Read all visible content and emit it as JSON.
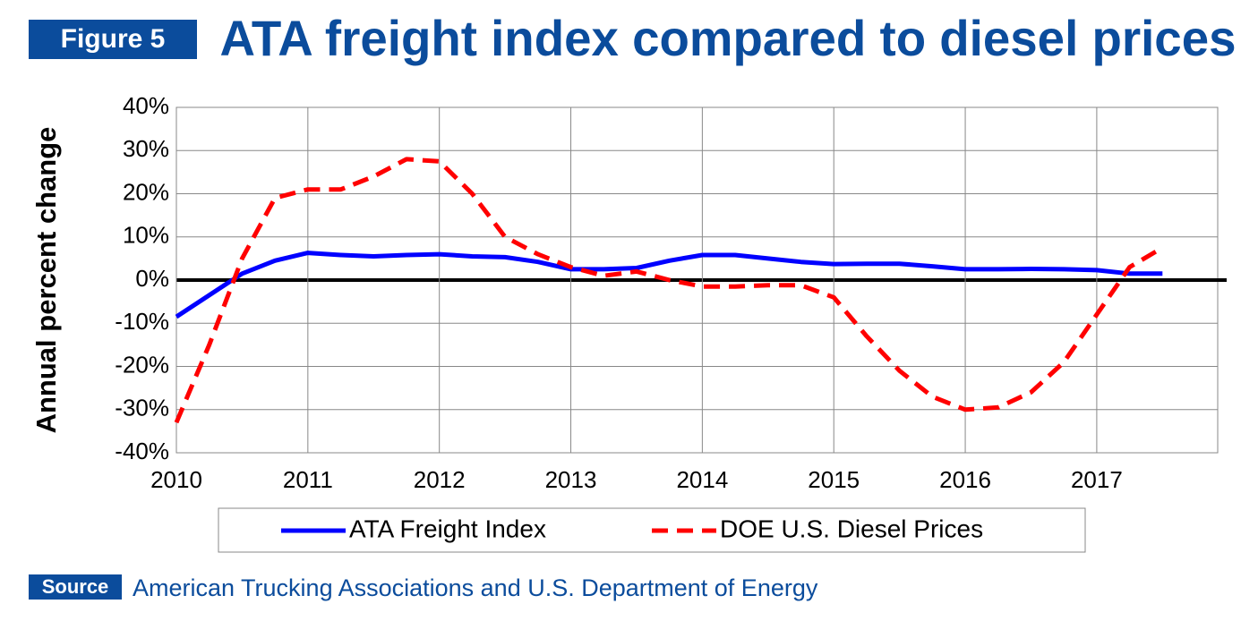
{
  "chart_data": {
    "type": "line",
    "badge": "Figure 5",
    "title": "ATA freight index compared to diesel prices",
    "y_label": "Annual percent  change",
    "source_label": "Source",
    "source": "American Trucking Associations and U.S. Department of Energy",
    "x": [
      2010,
      2010.25,
      2010.5,
      2010.75,
      2011,
      2011.25,
      2011.5,
      2011.75,
      2012,
      2012.25,
      2012.5,
      2012.75,
      2013,
      2013.25,
      2013.5,
      2013.75,
      2014,
      2014.25,
      2014.5,
      2014.75,
      2015,
      2015.25,
      2015.5,
      2015.75,
      2016,
      2016.25,
      2016.5,
      2016.75,
      2017,
      2017.25,
      2017.5
    ],
    "series": [
      {
        "name": "ATA Freight Index",
        "color": "#0000ff",
        "dash": false,
        "values": [
          -8.5,
          -3.5,
          1.5,
          4.5,
          6.3,
          5.8,
          5.5,
          5.8,
          6.0,
          5.5,
          5.3,
          4.2,
          2.5,
          2.5,
          2.8,
          4.5,
          5.8,
          5.8,
          5.0,
          4.2,
          3.7,
          3.8,
          3.8,
          3.2,
          2.5,
          2.5,
          2.6,
          2.5,
          2.3,
          1.5,
          1.5
        ]
      },
      {
        "name": "DOE U.S. Diesel Prices",
        "color": "#ff0000",
        "dash": true,
        "values": [
          -33,
          -15,
          5,
          19,
          21,
          21,
          24,
          28,
          27.5,
          20,
          10,
          6,
          3,
          1,
          2,
          0,
          -1.5,
          -1.5,
          -1.2,
          -1.2,
          -4,
          -13,
          -21,
          -27,
          -30,
          -29.5,
          -26,
          -19,
          -8,
          3,
          7.5
        ]
      }
    ],
    "xlim": [
      2010,
      2017.92
    ],
    "xticks": [
      2010,
      2011,
      2012,
      2013,
      2014,
      2015,
      2016,
      2017
    ],
    "ylim": [
      -40,
      40
    ],
    "yticks": [
      {
        "value": -40,
        "label": "-40%"
      },
      {
        "value": -30,
        "label": "-30%"
      },
      {
        "value": -20,
        "label": "-20%"
      },
      {
        "value": -10,
        "label": "-10%"
      },
      {
        "value": 0,
        "label": "0%"
      },
      {
        "value": 10,
        "label": "10%"
      },
      {
        "value": 20,
        "label": "20%"
      },
      {
        "value": 30,
        "label": "30%"
      },
      {
        "value": 40,
        "label": "40%"
      }
    ],
    "grid": true
  }
}
